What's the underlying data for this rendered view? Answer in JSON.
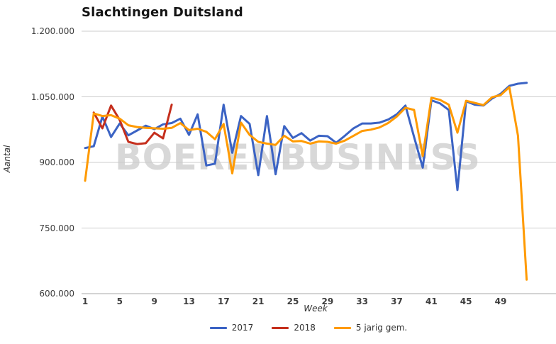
{
  "title": "Slachtingen Duitsland",
  "watermark": "BOERENBUSINESS",
  "axes": {
    "y_label": "Aantal",
    "x_label": "Week",
    "y_tick_labels": [
      "1.200.000",
      "1.050.000",
      "900.000",
      "750.000",
      "600.000"
    ],
    "y_tick_values": [
      1200000,
      1050000,
      900000,
      750000,
      600000
    ],
    "x_tick_labels": [
      "1",
      "5",
      "9",
      "13",
      "17",
      "21",
      "25",
      "29",
      "33",
      "37",
      "41",
      "45",
      "49"
    ],
    "x_tick_values": [
      1,
      5,
      9,
      13,
      17,
      21,
      25,
      29,
      33,
      37,
      41,
      45,
      49
    ]
  },
  "legend": [
    {
      "label": "2017",
      "color": "#3b63c4"
    },
    {
      "label": "2018",
      "color": "#c52f1d"
    },
    {
      "label": "5 jarig gem.",
      "color": "#ff9a00"
    }
  ],
  "colors": {
    "series_2017": "#3b63c4",
    "series_2018": "#c52f1d",
    "series_avg": "#ff9a00",
    "gridline": "#cccccc",
    "axis_line": "#aaaaaa",
    "tick_text": "#3d3d3d",
    "title_text": "#141414",
    "watermark_text": "#d8d8d8"
  },
  "chart_data": {
    "type": "line",
    "title": "Slachtingen Duitsland",
    "xlabel": "Week",
    "ylabel": "Aantal",
    "xlim": [
      1,
      52
    ],
    "ylim": [
      600000,
      1200000
    ],
    "grid": "horizontal-only",
    "legend_position": "bottom",
    "series": [
      {
        "name": "2017",
        "color": "#3b63c4",
        "weeks": [
          1,
          2,
          3,
          4,
          5,
          6,
          7,
          8,
          9,
          10,
          11,
          12,
          13,
          14,
          15,
          16,
          17,
          18,
          19,
          20,
          21,
          22,
          23,
          24,
          25,
          26,
          27,
          28,
          29,
          30,
          31,
          32,
          33,
          34,
          35,
          36,
          37,
          38,
          39,
          40,
          41,
          42,
          43,
          44,
          45,
          46,
          47,
          48,
          49,
          50,
          51,
          52
        ],
        "values": [
          933000,
          937000,
          1005000,
          958000,
          989000,
          962000,
          973000,
          984000,
          976000,
          987000,
          990000,
          1000000,
          963000,
          1010000,
          893000,
          897000,
          1032000,
          922000,
          1006000,
          988000,
          871000,
          1006000,
          873000,
          983000,
          956000,
          967000,
          950000,
          961000,
          960000,
          945000,
          961000,
          978000,
          989000,
          989000,
          991000,
          998000,
          1010000,
          1030000,
          958000,
          888000,
          1042000,
          1035000,
          1020000,
          837000,
          1040000,
          1032000,
          1030000,
          1046000,
          1057000,
          1075000,
          1080000,
          1082000
        ]
      },
      {
        "name": "2018",
        "color": "#c52f1d",
        "weeks": [
          2,
          3,
          4,
          5,
          6,
          7,
          8,
          9,
          10,
          11
        ],
        "values": [
          1014000,
          978000,
          1030000,
          997000,
          947000,
          942000,
          944000,
          968000,
          955000,
          1032000
        ]
      },
      {
        "name": "5 jarig gem.",
        "color": "#ff9a00",
        "weeks": [
          1,
          2,
          3,
          4,
          5,
          6,
          7,
          8,
          9,
          10,
          11,
          12,
          13,
          14,
          15,
          16,
          17,
          18,
          19,
          20,
          21,
          22,
          23,
          24,
          25,
          26,
          27,
          28,
          29,
          30,
          31,
          32,
          33,
          34,
          35,
          36,
          37,
          38,
          39,
          40,
          41,
          42,
          43,
          44,
          45,
          46,
          47,
          48,
          49,
          50,
          51,
          52
        ],
        "values": [
          858000,
          1012000,
          1006000,
          1008000,
          1000000,
          985000,
          981000,
          979000,
          978000,
          977000,
          979000,
          990000,
          974000,
          977000,
          970000,
          953000,
          988000,
          875000,
          991000,
          963000,
          947000,
          943000,
          940000,
          961000,
          948000,
          949000,
          943000,
          948000,
          947000,
          943000,
          950000,
          961000,
          972000,
          975000,
          980000,
          990000,
          1005000,
          1025000,
          1020000,
          915000,
          1048000,
          1043000,
          1032000,
          968000,
          1041000,
          1036000,
          1031000,
          1049000,
          1054000,
          1072000,
          961000,
          632000
        ]
      }
    ]
  }
}
